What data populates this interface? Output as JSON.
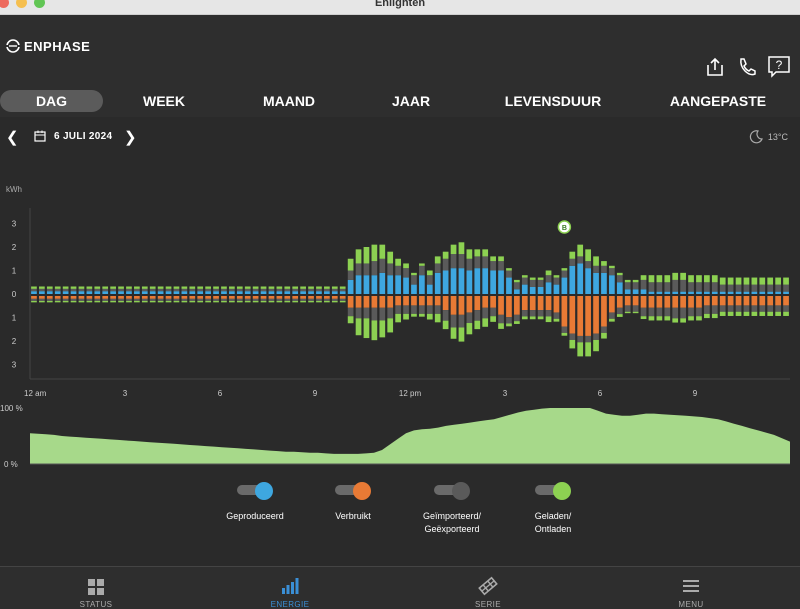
{
  "window": {
    "title": "Enlighten"
  },
  "header": {
    "logo_text": "ENPHASE",
    "icons": [
      "share-icon",
      "phone-icon",
      "help-icon"
    ]
  },
  "tabs": [
    {
      "label": "DAG",
      "active": true
    },
    {
      "label": "WEEK",
      "active": false
    },
    {
      "label": "MAAND",
      "active": false
    },
    {
      "label": "JAAR",
      "active": false
    },
    {
      "label": "LEVENSDUUR",
      "active": false
    },
    {
      "label": "AANGEPASTE",
      "active": false
    }
  ],
  "datebar": {
    "date": "6 JULI 2024",
    "temperature": "13°C",
    "weather_icon": "moon-icon"
  },
  "colors": {
    "produced": "#3ea7e0",
    "consumed": "#e87a35",
    "grid": "#5a5a5a",
    "battery": "#8dd152",
    "soc_fill": "#a7d98a"
  },
  "chart_data": [
    {
      "type": "bar",
      "ylabel": "kWh",
      "y_ticks": [
        "3",
        "2",
        "1",
        "0",
        "1",
        "2",
        "3"
      ],
      "x_ticks": [
        "12 am",
        "3",
        "6",
        "9",
        "12 pm",
        "3",
        "6",
        "9"
      ],
      "ylim": [
        -3,
        3
      ],
      "annotation": "B",
      "series": [
        {
          "name": "Geproduceerd",
          "values": [
            0.12,
            0.12,
            0.12,
            0.12,
            0.12,
            0.12,
            0.12,
            0.12,
            0.12,
            0.12,
            0.12,
            0.12,
            0.12,
            0.12,
            0.12,
            0.12,
            0.12,
            0.12,
            0.12,
            0.12,
            0.12,
            0.12,
            0.12,
            0.12,
            0.12,
            0.12,
            0.12,
            0.12,
            0.12,
            0.12,
            0.12,
            0.12,
            0.12,
            0.12,
            0.12,
            0.12,
            0.12,
            0.12,
            0.12,
            0.12,
            0.6,
            0.8,
            0.8,
            0.8,
            0.9,
            0.8,
            0.8,
            0.7,
            0.4,
            0.8,
            0.4,
            0.9,
            1.0,
            1.1,
            1.1,
            1.0,
            1.1,
            1.1,
            1.0,
            1.0,
            0.7,
            0.2,
            0.4,
            0.3,
            0.3,
            0.5,
            0.4,
            0.7,
            1.2,
            1.3,
            1.1,
            0.9,
            0.9,
            0.8,
            0.5,
            0.2,
            0.2,
            0.2,
            0.1,
            0.1,
            0.1,
            0.1,
            0.1,
            0.1,
            0.1,
            0.1,
            0.1,
            0.1,
            0.1,
            0.1,
            0.1,
            0.1,
            0.1,
            0.1,
            0.1,
            0.1
          ]
        },
        {
          "name": "Verbruikt",
          "values": [
            -0.12,
            -0.12,
            -0.12,
            -0.12,
            -0.12,
            -0.12,
            -0.12,
            -0.12,
            -0.12,
            -0.12,
            -0.12,
            -0.12,
            -0.12,
            -0.12,
            -0.12,
            -0.12,
            -0.12,
            -0.12,
            -0.12,
            -0.12,
            -0.12,
            -0.12,
            -0.12,
            -0.12,
            -0.12,
            -0.12,
            -0.12,
            -0.12,
            -0.12,
            -0.12,
            -0.12,
            -0.12,
            -0.12,
            -0.12,
            -0.12,
            -0.12,
            -0.12,
            -0.12,
            -0.12,
            -0.12,
            -0.5,
            -0.5,
            -0.5,
            -0.5,
            -0.5,
            -0.5,
            -0.4,
            -0.4,
            -0.4,
            -0.4,
            -0.4,
            -0.4,
            -0.6,
            -0.8,
            -0.8,
            -0.7,
            -0.6,
            -0.5,
            -0.5,
            -0.8,
            -0.9,
            -0.8,
            -0.6,
            -0.6,
            -0.6,
            -0.6,
            -0.7,
            -1.3,
            -1.6,
            -1.7,
            -1.7,
            -1.6,
            -1.3,
            -0.7,
            -0.5,
            -0.4,
            -0.4,
            -0.5,
            -0.5,
            -0.5,
            -0.5,
            -0.5,
            -0.5,
            -0.5,
            -0.5,
            -0.4,
            -0.4,
            -0.4,
            -0.4,
            -0.4,
            -0.4,
            -0.4,
            -0.4,
            -0.4,
            -0.4,
            -0.4
          ]
        },
        {
          "name": "Geïmporteerd/Geëxporteerd",
          "values": [
            0.1,
            0.1,
            0.1,
            0.1,
            0.1,
            0.1,
            0.1,
            0.1,
            0.1,
            0.1,
            0.1,
            0.1,
            0.1,
            0.1,
            0.1,
            0.1,
            0.1,
            0.1,
            0.1,
            0.1,
            0.1,
            0.1,
            0.1,
            0.1,
            0.1,
            0.1,
            0.1,
            0.1,
            0.1,
            0.1,
            0.1,
            0.1,
            0.1,
            0.1,
            0.1,
            0.1,
            0.1,
            0.1,
            0.1,
            0.1,
            0.4,
            0.5,
            0.5,
            0.6,
            0.6,
            0.5,
            0.4,
            0.4,
            0.4,
            0.4,
            0.4,
            0.4,
            0.5,
            0.6,
            0.6,
            0.5,
            0.5,
            0.5,
            0.4,
            0.4,
            0.3,
            0.3,
            0.3,
            0.3,
            0.3,
            0.3,
            0.3,
            0.3,
            0.3,
            0.3,
            0.3,
            0.3,
            0.3,
            0.3,
            0.3,
            0.3,
            0.3,
            0.4,
            0.4,
            0.4,
            0.4,
            0.5,
            0.5,
            0.4,
            0.4,
            0.4,
            0.4,
            0.3,
            0.3,
            0.3,
            0.3,
            0.3,
            0.3,
            0.3,
            0.3,
            0.3
          ]
        },
        {
          "name": "Geladen/Ontladen",
          "values": [
            0.1,
            0.1,
            0.1,
            0.1,
            0.1,
            0.1,
            0.1,
            0.1,
            0.1,
            0.1,
            0.1,
            0.1,
            0.1,
            0.1,
            0.1,
            0.1,
            0.1,
            0.1,
            0.1,
            0.1,
            0.1,
            0.1,
            0.1,
            0.1,
            0.1,
            0.1,
            0.1,
            0.1,
            0.1,
            0.1,
            0.1,
            0.1,
            0.1,
            0.1,
            0.1,
            0.1,
            0.1,
            0.1,
            0.1,
            0.1,
            0.5,
            0.6,
            0.7,
            0.7,
            0.6,
            0.5,
            0.3,
            0.2,
            0.1,
            0.1,
            0.2,
            0.3,
            0.3,
            0.4,
            0.5,
            0.4,
            0.3,
            0.3,
            0.2,
            0.2,
            0.1,
            0.1,
            0.1,
            0.1,
            0.1,
            0.2,
            0.1,
            0.1,
            0.3,
            0.5,
            0.5,
            0.4,
            0.2,
            0.1,
            0.1,
            0.1,
            0.1,
            0.2,
            0.3,
            0.3,
            0.3,
            0.3,
            0.3,
            0.3,
            0.3,
            0.3,
            0.3,
            0.3,
            0.3,
            0.3,
            0.3,
            0.3,
            0.3,
            0.3,
            0.3,
            0.3
          ]
        }
      ]
    },
    {
      "type": "area",
      "name": "state-of-charge",
      "y_ticks": [
        "100 %",
        "0 %"
      ],
      "ylim": [
        0,
        100
      ],
      "values": [
        55,
        54,
        53,
        52,
        50,
        49,
        48,
        47,
        46,
        45,
        44,
        43,
        42,
        41,
        40,
        39,
        38,
        37,
        36,
        35,
        34,
        33,
        32,
        31,
        30,
        29,
        28,
        27,
        26,
        25,
        24,
        23,
        22,
        22,
        21,
        20,
        20,
        19,
        18,
        18,
        18,
        18,
        19,
        20,
        25,
        35,
        45,
        55,
        60,
        62,
        63,
        65,
        68,
        70,
        72,
        74,
        76,
        78,
        80,
        84,
        88,
        92,
        95,
        97,
        99,
        100,
        100,
        100,
        100,
        100,
        100,
        95,
        90,
        88,
        86,
        86,
        88,
        90,
        90,
        89,
        88,
        87,
        86,
        85,
        84,
        82,
        80,
        76,
        72,
        68,
        64,
        60,
        56,
        52,
        46,
        40
      ]
    }
  ],
  "legend": [
    {
      "label": "Geproduceerd",
      "line2": "",
      "color": "#3ea7e0"
    },
    {
      "label": "Verbruikt",
      "line2": "",
      "color": "#e87a35"
    },
    {
      "label": "Geïmporteerd/",
      "line2": "Geëxporteerd",
      "color": "#5a5a5a"
    },
    {
      "label": "Geladen/",
      "line2": "Ontladen",
      "color": "#8dd152"
    }
  ],
  "nav": [
    {
      "label": "STATUS",
      "active": false
    },
    {
      "label": "ENERGIE",
      "active": true
    },
    {
      "label": "SERIE",
      "active": false
    },
    {
      "label": "MENU",
      "active": false
    }
  ]
}
